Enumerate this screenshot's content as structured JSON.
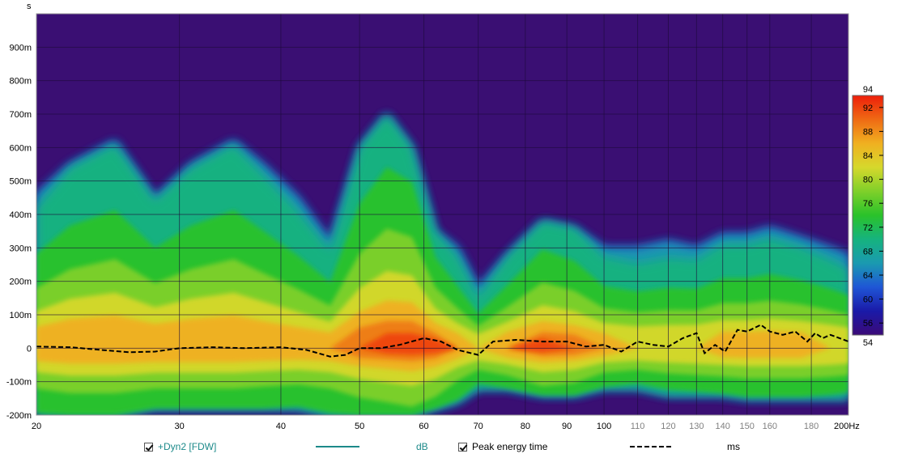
{
  "chart_data": {
    "type": "heatmap",
    "title": "",
    "y_unit": "s",
    "x_unit": "Hz",
    "x_scale": "log",
    "xlim": [
      20,
      200
    ],
    "ylim": [
      -0.2,
      1.0
    ],
    "x_ticks": [
      {
        "value": 20,
        "label": "20",
        "minor": false
      },
      {
        "value": 30,
        "label": "30",
        "minor": false
      },
      {
        "value": 40,
        "label": "40",
        "minor": false
      },
      {
        "value": 50,
        "label": "50",
        "minor": false
      },
      {
        "value": 60,
        "label": "60",
        "minor": false
      },
      {
        "value": 70,
        "label": "70",
        "minor": false
      },
      {
        "value": 80,
        "label": "80",
        "minor": false
      },
      {
        "value": 90,
        "label": "90",
        "minor": false
      },
      {
        "value": 100,
        "label": "100",
        "minor": false
      },
      {
        "value": 110,
        "label": "110",
        "minor": true
      },
      {
        "value": 120,
        "label": "120",
        "minor": true
      },
      {
        "value": 130,
        "label": "130",
        "minor": true
      },
      {
        "value": 140,
        "label": "140",
        "minor": true
      },
      {
        "value": 150,
        "label": "150",
        "minor": true
      },
      {
        "value": 160,
        "label": "160",
        "minor": true
      },
      {
        "value": 180,
        "label": "180",
        "minor": true
      },
      {
        "value": 200,
        "label": "200Hz",
        "minor": false
      }
    ],
    "y_ticks": [
      {
        "value": 0.9,
        "label": "900m"
      },
      {
        "value": 0.8,
        "label": "800m"
      },
      {
        "value": 0.7,
        "label": "700m"
      },
      {
        "value": 0.6,
        "label": "600m"
      },
      {
        "value": 0.5,
        "label": "500m"
      },
      {
        "value": 0.4,
        "label": "400m"
      },
      {
        "value": 0.3,
        "label": "300m"
      },
      {
        "value": 0.2,
        "label": "200m"
      },
      {
        "value": 0.1,
        "label": "100m"
      },
      {
        "value": 0.0,
        "label": "0"
      },
      {
        "value": -0.1,
        "label": "-100m"
      },
      {
        "value": -0.2,
        "label": "-200m"
      }
    ],
    "colorscale": {
      "min": 54,
      "max": 94,
      "ticks": [
        "94",
        "92",
        "88",
        "84",
        "80",
        "76",
        "72",
        "68",
        "64",
        "60",
        "56",
        "54"
      ],
      "tick_values": [
        94,
        92,
        88,
        84,
        80,
        76,
        72,
        68,
        64,
        60,
        56,
        54
      ],
      "stops": [
        {
          "v": 54,
          "color": "#3b0a78"
        },
        {
          "v": 58,
          "color": "#1a1aa8"
        },
        {
          "v": 62,
          "color": "#1f56d6"
        },
        {
          "v": 66,
          "color": "#1a9ab0"
        },
        {
          "v": 70,
          "color": "#16b37e"
        },
        {
          "v": 74,
          "color": "#2ac22a"
        },
        {
          "v": 78,
          "color": "#7fd02a"
        },
        {
          "v": 82,
          "color": "#d6d82c"
        },
        {
          "v": 86,
          "color": "#f0b020"
        },
        {
          "v": 90,
          "color": "#ef6a14"
        },
        {
          "v": 94,
          "color": "#ee1e0a"
        }
      ]
    },
    "colors": {
      "plot_background": "#3a0f73",
      "grid": "#1c0a3a",
      "peak_line": "#000000"
    },
    "bands": [
      {
        "f": 20,
        "t_top": 0.46,
        "t_bot": -0.2,
        "peak": 84
      },
      {
        "f": 22,
        "t_top": 0.55,
        "t_bot": -0.2,
        "peak": 86
      },
      {
        "f": 25,
        "t_top": 0.62,
        "t_bot": -0.2,
        "peak": 86
      },
      {
        "f": 28,
        "t_top": 0.45,
        "t_bot": -0.18,
        "peak": 86
      },
      {
        "f": 31,
        "t_top": 0.55,
        "t_bot": -0.18,
        "peak": 86
      },
      {
        "f": 35,
        "t_top": 0.62,
        "t_bot": -0.18,
        "peak": 86
      },
      {
        "f": 38,
        "t_top": 0.55,
        "t_bot": -0.18,
        "peak": 85
      },
      {
        "f": 42,
        "t_top": 0.45,
        "t_bot": -0.18,
        "peak": 84
      },
      {
        "f": 46,
        "t_top": 0.32,
        "t_bot": -0.2,
        "peak": 84
      },
      {
        "f": 50,
        "t_top": 0.6,
        "t_bot": -0.2,
        "peak": 88
      },
      {
        "f": 54,
        "t_top": 0.7,
        "t_bot": -0.2,
        "peak": 90
      },
      {
        "f": 58,
        "t_top": 0.6,
        "t_bot": -0.2,
        "peak": 92
      },
      {
        "f": 62,
        "t_top": 0.35,
        "t_bot": -0.18,
        "peak": 90
      },
      {
        "f": 66,
        "t_top": 0.3,
        "t_bot": -0.16,
        "peak": 84
      },
      {
        "f": 70,
        "t_top": 0.18,
        "t_bot": -0.12,
        "peak": 82
      },
      {
        "f": 76,
        "t_top": 0.28,
        "t_bot": -0.12,
        "peak": 86
      },
      {
        "f": 84,
        "t_top": 0.38,
        "t_bot": -0.14,
        "peak": 90
      },
      {
        "f": 92,
        "t_top": 0.36,
        "t_bot": -0.14,
        "peak": 88
      },
      {
        "f": 100,
        "t_top": 0.3,
        "t_bot": -0.12,
        "peak": 84
      },
      {
        "f": 110,
        "t_top": 0.3,
        "t_bot": -0.12,
        "peak": 82
      },
      {
        "f": 120,
        "t_top": 0.32,
        "t_bot": -0.14,
        "peak": 82
      },
      {
        "f": 130,
        "t_top": 0.3,
        "t_bot": -0.14,
        "peak": 83
      },
      {
        "f": 140,
        "t_top": 0.34,
        "t_bot": -0.14,
        "peak": 84
      },
      {
        "f": 150,
        "t_top": 0.34,
        "t_bot": -0.15,
        "peak": 84
      },
      {
        "f": 160,
        "t_top": 0.36,
        "t_bot": -0.15,
        "peak": 84
      },
      {
        "f": 175,
        "t_top": 0.33,
        "t_bot": -0.15,
        "peak": 84
      },
      {
        "f": 190,
        "t_top": 0.3,
        "t_bot": -0.15,
        "peak": 83
      },
      {
        "f": 200,
        "t_top": 0.28,
        "t_bot": -0.15,
        "peak": 82
      }
    ],
    "series": [
      {
        "name": "Peak energy time",
        "style": "dashed",
        "x": [
          20,
          22,
          24,
          26,
          28,
          30,
          33,
          36,
          40,
          43,
          46,
          48,
          50,
          53,
          56,
          60,
          63,
          66,
          70,
          73,
          78,
          84,
          90,
          95,
          100,
          105,
          110,
          115,
          120,
          125,
          130,
          133,
          137,
          141,
          146,
          150,
          156,
          160,
          166,
          172,
          178,
          182,
          186,
          190,
          195,
          200
        ],
        "y": [
          0.005,
          0.003,
          -0.005,
          -0.012,
          -0.01,
          0.0,
          0.003,
          0.0,
          0.003,
          -0.005,
          -0.025,
          -0.02,
          0.0,
          0.0,
          0.01,
          0.03,
          0.02,
          -0.005,
          -0.02,
          0.02,
          0.025,
          0.02,
          0.02,
          0.005,
          0.01,
          -0.01,
          0.02,
          0.01,
          0.005,
          0.03,
          0.045,
          -0.015,
          0.01,
          -0.01,
          0.055,
          0.05,
          0.07,
          0.05,
          0.04,
          0.05,
          0.02,
          0.045,
          0.03,
          0.04,
          0.03,
          0.02
        ]
      }
    ]
  },
  "legend": {
    "items": [
      {
        "label": "+Dyn2 [FDW]",
        "unit": "dB",
        "checked": true
      },
      {
        "label": "Peak energy time",
        "unit": "ms",
        "checked": true
      }
    ]
  }
}
